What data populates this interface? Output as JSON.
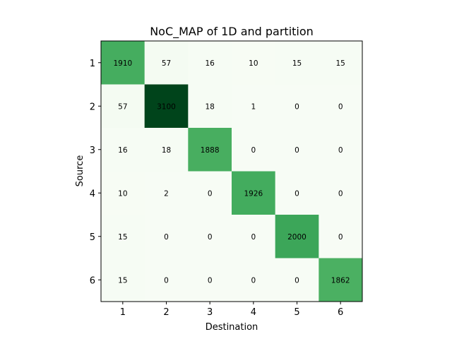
{
  "chart_data": {
    "type": "heatmap",
    "title": "NoC_MAP of 1D and partition",
    "xlabel": "Destination",
    "ylabel": "Source",
    "x_categories": [
      "1",
      "2",
      "3",
      "4",
      "5",
      "6"
    ],
    "y_categories": [
      "1",
      "2",
      "3",
      "4",
      "5",
      "6"
    ],
    "values": [
      [
        1910,
        57,
        16,
        10,
        15,
        15
      ],
      [
        57,
        3100,
        18,
        1,
        0,
        0
      ],
      [
        16,
        18,
        1888,
        0,
        0,
        0
      ],
      [
        10,
        2,
        0,
        1926,
        0,
        0
      ],
      [
        15,
        0,
        0,
        0,
        2000,
        0
      ],
      [
        15,
        0,
        0,
        0,
        0,
        1862
      ]
    ],
    "colormap": "Greens",
    "color_range": [
      0,
      3100
    ],
    "grid": false,
    "legend": "none"
  }
}
